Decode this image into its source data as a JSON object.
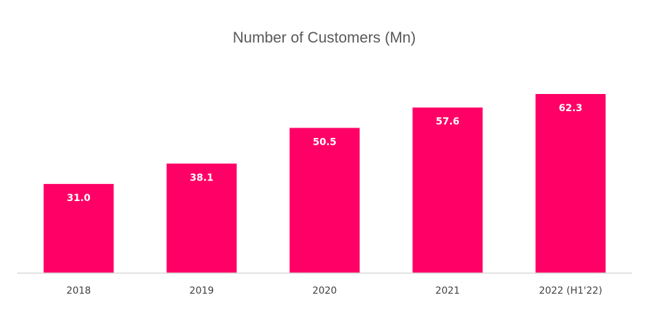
{
  "chart_data": {
    "type": "bar",
    "title": "Number of Customers (Mn)",
    "xlabel": "",
    "ylabel": "",
    "categories": [
      "2018",
      "2019",
      "2020",
      "2021",
      "2022 (H1'22)"
    ],
    "values": [
      31.0,
      38.1,
      50.5,
      57.6,
      62.3
    ],
    "value_labels": [
      "31.0",
      "38.1",
      "50.5",
      "57.6",
      "62.3"
    ],
    "ylim": [
      0,
      70
    ],
    "grid": false,
    "legend": "none",
    "bar_color": "#FF0066",
    "axis_color": "#D9D9D9",
    "title_color": "#595959",
    "tick_color": "#404040",
    "label_color": "#FFFFFF"
  }
}
